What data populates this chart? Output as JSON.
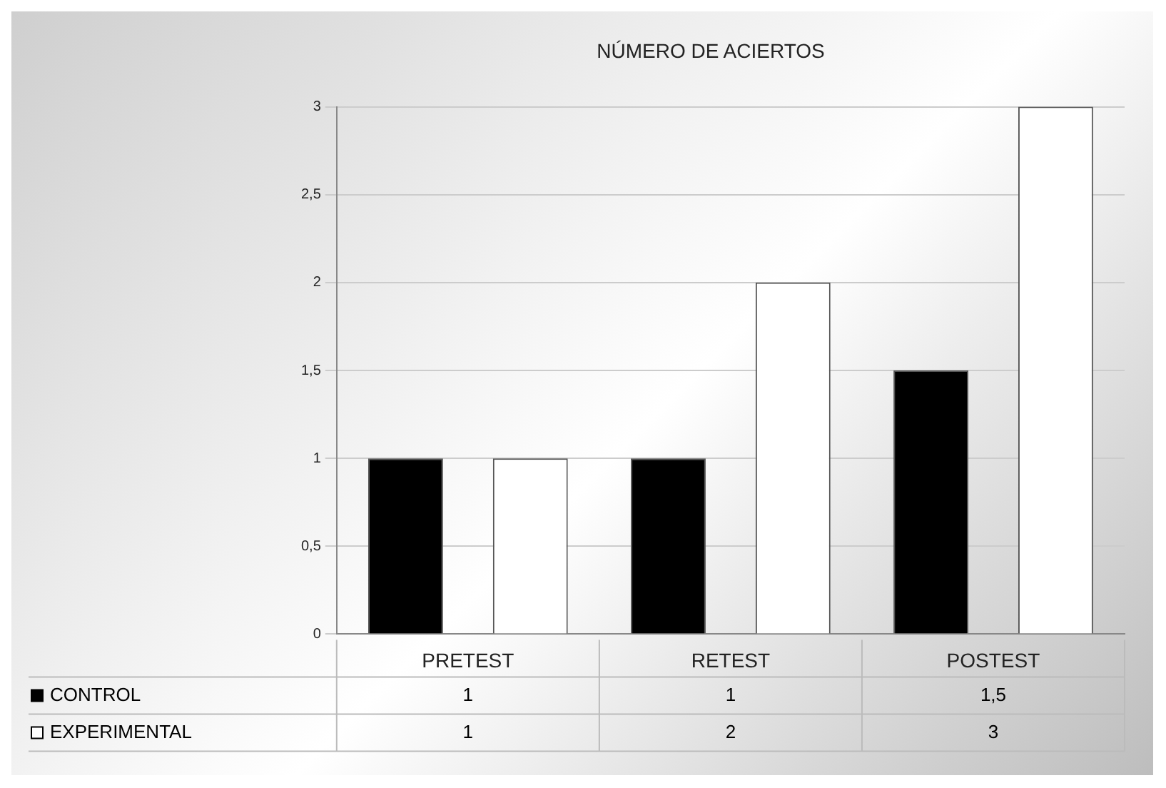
{
  "chart_data": {
    "type": "bar",
    "title": "NÚMERO DE ACIERTOS",
    "categories": [
      "PRETEST",
      "RETEST",
      "POSTEST"
    ],
    "series": [
      {
        "name": "CONTROL",
        "color": "#000000",
        "values": [
          1,
          1,
          1.5
        ],
        "value_labels": [
          "1",
          "1",
          "1,5"
        ]
      },
      {
        "name": "EXPERIMENTAL",
        "color": "#ffffff",
        "values": [
          1,
          2,
          3
        ],
        "value_labels": [
          "1",
          "2",
          "3"
        ]
      }
    ],
    "ylim": [
      0,
      3
    ],
    "yticks": [
      0,
      {
        "value": 0.5,
        "label": "0,5"
      },
      1,
      {
        "value": 1.5,
        "label": "1,5"
      },
      2,
      {
        "value": 2.5,
        "label": "2,5"
      },
      3
    ],
    "grid": "y",
    "legend": "bottom"
  }
}
